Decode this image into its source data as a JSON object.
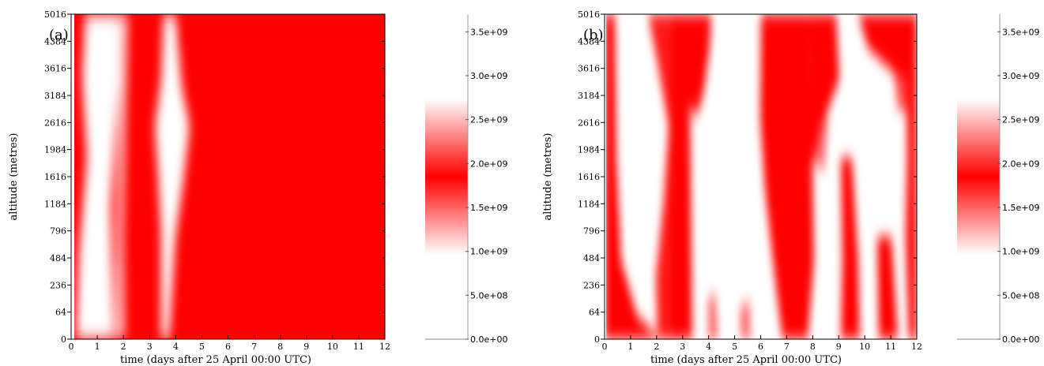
{
  "chart_data": [
    {
      "type": "heatmap",
      "panel_label": "(a)",
      "xlabel": "time (days after 25 April 00:00 UTC)",
      "ylabel": "altitude (metres)",
      "xlim": [
        0,
        12
      ],
      "x_ticks": [
        0,
        1,
        2,
        3,
        4,
        5,
        6,
        7,
        8,
        9,
        10,
        11,
        12
      ],
      "y_ticks": [
        "0",
        "64",
        "236",
        "484",
        "796",
        "1184",
        "1616",
        "1984",
        "2616",
        "3184",
        "3616",
        "4384",
        "5016"
      ],
      "colorscale": [
        "#ffffff",
        "#ff0000",
        "#ffffff"
      ],
      "colorbar_ticks": [
        "0.0e+00",
        "5.0e+08",
        "1.0e+09",
        "1.5e+09",
        "2.0e+09",
        "2.5e+09",
        "3.0e+09",
        "3.5e+09"
      ],
      "colorbar_range": [
        0,
        3700000000.0
      ],
      "colorbar_gradient_range": [
        1000000000.0,
        2800000000.0
      ],
      "data_start_day": 0.85,
      "description_bands": [
        {
          "from": 0.85,
          "to": 1.1,
          "value": "high"
        },
        {
          "from": 1.1,
          "to": 2.3,
          "value": "low"
        },
        {
          "from": 2.3,
          "to": 2.7,
          "value": "mixed"
        },
        {
          "from": 2.7,
          "to": 3.9,
          "value": "high"
        },
        {
          "from": 3.9,
          "to": 4.9,
          "value": "low-centered"
        },
        {
          "from": 4.9,
          "to": 12,
          "value": "high"
        }
      ]
    },
    {
      "type": "heatmap",
      "panel_label": "(b)",
      "xlabel": "time (days after 25 April 00:00 UTC)",
      "ylabel": "altitude (metres)",
      "xlim": [
        0,
        12
      ],
      "x_ticks": [
        0,
        1,
        2,
        3,
        4,
        5,
        6,
        7,
        8,
        9,
        10,
        11,
        12
      ],
      "y_ticks": [
        "0",
        "64",
        "236",
        "484",
        "796",
        "1184",
        "1616",
        "1984",
        "2616",
        "3184",
        "3616",
        "4384",
        "5016"
      ],
      "colorscale": [
        "#ffffff",
        "#ff0000",
        "#ffffff"
      ],
      "colorbar_ticks": [
        "0.0e+00",
        "5.0e+08",
        "1.0e+09",
        "1.5e+09",
        "2.0e+09",
        "2.5e+09",
        "3.0e+09",
        "3.5e+09"
      ],
      "colorbar_range": [
        0,
        3700000000.0
      ],
      "colorbar_gradient_range": [
        1000000000.0,
        2800000000.0
      ],
      "data_start_day": 0.85
    }
  ]
}
